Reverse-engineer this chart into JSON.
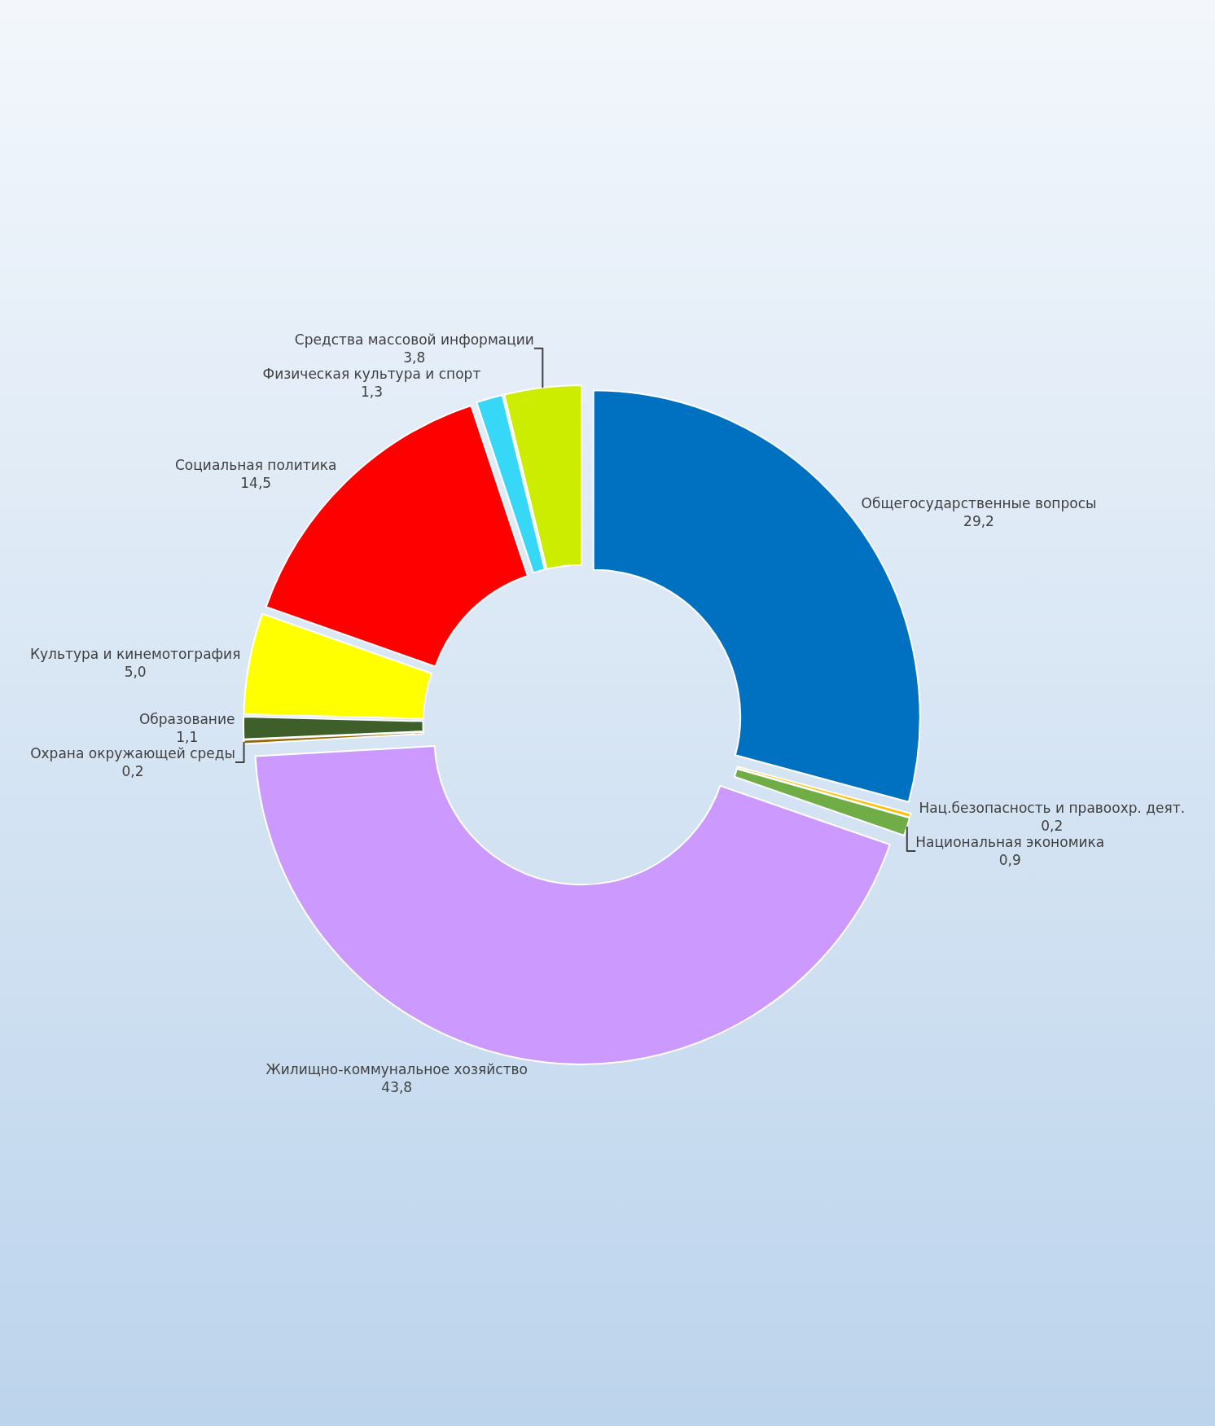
{
  "chart_data": {
    "type": "donut",
    "categories": [
      "Общегосударственные вопросы",
      "Нац.безопасность и правоохр. деят.",
      "Национальная экономика",
      "Жилищно-коммунальное хозяйство",
      "Охрана окружающей среды",
      "Образование",
      "Культура и кинемотография",
      "Социальная политика",
      "Физическая культура и спорт",
      "Средства массовой информации"
    ],
    "values": [
      29.2,
      0.2,
      0.9,
      43.8,
      0.2,
      1.1,
      5.0,
      14.5,
      1.3,
      3.8
    ],
    "value_labels": [
      "29,2",
      "0,2",
      "0,9",
      "43,8",
      "0,2",
      "1,1",
      "5,0",
      "14,5",
      "1,3",
      "3,8"
    ],
    "colors": [
      "#0070c0",
      "#ffc000",
      "#70ad47",
      "#cc99ff",
      "#996600",
      "#3e5f2a",
      "#ffff00",
      "#ff0000",
      "#37d7f7",
      "#ccec00"
    ],
    "legend": false
  }
}
